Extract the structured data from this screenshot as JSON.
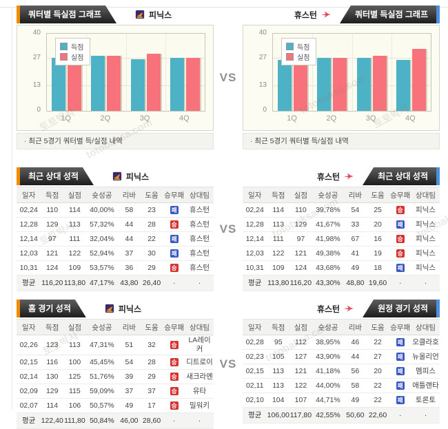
{
  "page": {
    "vs": "VS",
    "watermark_ko": "토토박사",
    "watermark_en": "totobaksa.com"
  },
  "badge_colors": {
    "승": "#d63434",
    "패": "#3a57c4"
  },
  "charts_section": {
    "tab_label": "쿼터별 득실점 그래프",
    "left_team": "피닉스",
    "right_team": "휴스턴",
    "note": "· 최근 5경기 쿼터별 득/실점 내역"
  },
  "chart_data": [
    {
      "type": "bar",
      "title": "피닉스 쿼터별 득실점",
      "categories": [
        "1Q",
        "2Q",
        "3Q",
        "4Q"
      ],
      "series": [
        {
          "name": "득점",
          "color": "#4db2c6",
          "values": [
            27.5,
            28.7,
            26.8,
            27.6
          ]
        },
        {
          "name": "실점",
          "color": "#f8727c",
          "values": [
            28.8,
            28.4,
            29.6,
            27.6
          ]
        }
      ],
      "ylim": [
        0,
        40
      ],
      "yticks": [
        0,
        13,
        27,
        40
      ],
      "legend_position": "top-left",
      "grid": true
    },
    {
      "type": "bar",
      "title": "휴스턴 쿼터별 득실점",
      "categories": [
        "1Q",
        "2Q",
        "3Q",
        "4Q"
      ],
      "series": [
        {
          "name": "득점",
          "color": "#4db2c6",
          "values": [
            26.5,
            27.4,
            27.5,
            26.5
          ]
        },
        {
          "name": "실점",
          "color": "#f8727c",
          "values": [
            30.5,
            27.4,
            28.4,
            32.2
          ]
        }
      ],
      "ylim": [
        0,
        40
      ],
      "yticks": [
        0,
        13,
        27,
        40
      ],
      "legend_position": "top-left",
      "grid": true
    }
  ],
  "h2h_section": {
    "tab_label": "최근 상대 성적",
    "left_team": "피닉스",
    "right_team": "휴스턴",
    "left_table": {
      "columns": [
        "일자",
        "득점",
        "실점",
        "슛성공",
        "리바",
        "도움",
        "승무패",
        "상대팀"
      ],
      "rows": [
        [
          "02,24",
          "110",
          "114",
          "40,00%",
          "58",
          "23",
          "패",
          "휴스턴"
        ],
        [
          "12,28",
          "129",
          "113",
          "57,32%",
          "44",
          "28",
          "승",
          "휴스턴"
        ],
        [
          "12,14",
          "97",
          "111",
          "32,04%",
          "44",
          "22",
          "패",
          "휴스턴"
        ],
        [
          "12,03",
          "121",
          "122",
          "52,94%",
          "37",
          "30",
          "패",
          "휴스턴"
        ],
        [
          "10,31",
          "124",
          "109",
          "53,57%",
          "36",
          "29",
          "승",
          "휴스턴"
        ]
      ],
      "avg": [
        "평균",
        "116,20",
        "113,80",
        "47,17%",
        "43,80",
        "26,40",
        "·",
        "·"
      ]
    },
    "right_table": {
      "columns": [
        "일자",
        "득점",
        "실점",
        "슛성공",
        "리바",
        "도움",
        "승무패",
        "상대팀"
      ],
      "rows": [
        [
          "02,24",
          "114",
          "110",
          "39,78%",
          "54",
          "25",
          "승",
          "피닉스"
        ],
        [
          "12,28",
          "113",
          "129",
          "41,67%",
          "33",
          "20",
          "패",
          "피닉스"
        ],
        [
          "12,14",
          "111",
          "97",
          "41,98%",
          "67",
          "16",
          "승",
          "피닉스"
        ],
        [
          "12,03",
          "122",
          "121",
          "49,38%",
          "41",
          "19",
          "승",
          "피닉스"
        ],
        [
          "10,31",
          "109",
          "124",
          "43,68%",
          "49",
          "18",
          "패",
          "피닉스"
        ]
      ],
      "avg": [
        "평균",
        "113,80",
        "116,20",
        "43,30%",
        "48,80",
        "19,60",
        "·",
        "·"
      ]
    }
  },
  "homeaway_section": {
    "left_tab_label": "홈 경기 성적",
    "right_tab_label": "원정 경기 성적",
    "left_team": "피닉스",
    "right_team": "휴스턴",
    "left_table": {
      "columns": [
        "일자",
        "득점",
        "실점",
        "슛성공",
        "리바",
        "도움",
        "승무패",
        "상대팀"
      ],
      "rows": [
        [
          "02,26",
          "123",
          "113",
          "47,31%",
          "51",
          "32",
          "승",
          "LA레이커"
        ],
        [
          "02,15",
          "116",
          "100",
          "45,45%",
          "54",
          "28",
          "승",
          "디트로이"
        ],
        [
          "02,14",
          "130",
          "125",
          "51,76%",
          "39",
          "29",
          "승",
          "새크라멘"
        ],
        [
          "02,09",
          "129",
          "115",
          "59,09%",
          "37",
          "37",
          "승",
          "유타"
        ],
        [
          "02,07",
          "114",
          "106",
          "50,57%",
          "49",
          "17",
          "승",
          "밀워키"
        ]
      ],
      "avg": [
        "평균",
        "122,40",
        "111,80",
        "50,84%",
        "46,00",
        "28,60",
        "·",
        "·"
      ]
    },
    "right_table": {
      "columns": [
        "일자",
        "득점",
        "실점",
        "슛성공",
        "리바",
        "도움",
        "승무패",
        "상대팀"
      ],
      "rows": [
        [
          "02,28",
          "95",
          "112",
          "38,95%",
          "46",
          "22",
          "패",
          "오클라호"
        ],
        [
          "02,23",
          "105",
          "127",
          "43,90%",
          "44",
          "27",
          "패",
          "뉴올리언"
        ],
        [
          "02,15",
          "113",
          "121",
          "41,18%",
          "56",
          "20",
          "패",
          "멤피스"
        ],
        [
          "02,11",
          "113",
          "122",
          "44,00%",
          "58",
          "22",
          "패",
          "애틀랜타"
        ],
        [
          "02,10",
          "104",
          "107",
          "44,71%",
          "49",
          "22",
          "패",
          "토론토"
        ]
      ],
      "avg": [
        "평균",
        "106,00",
        "117,80",
        "42,55%",
        "50,60",
        "22,60",
        "·",
        "·"
      ]
    }
  }
}
